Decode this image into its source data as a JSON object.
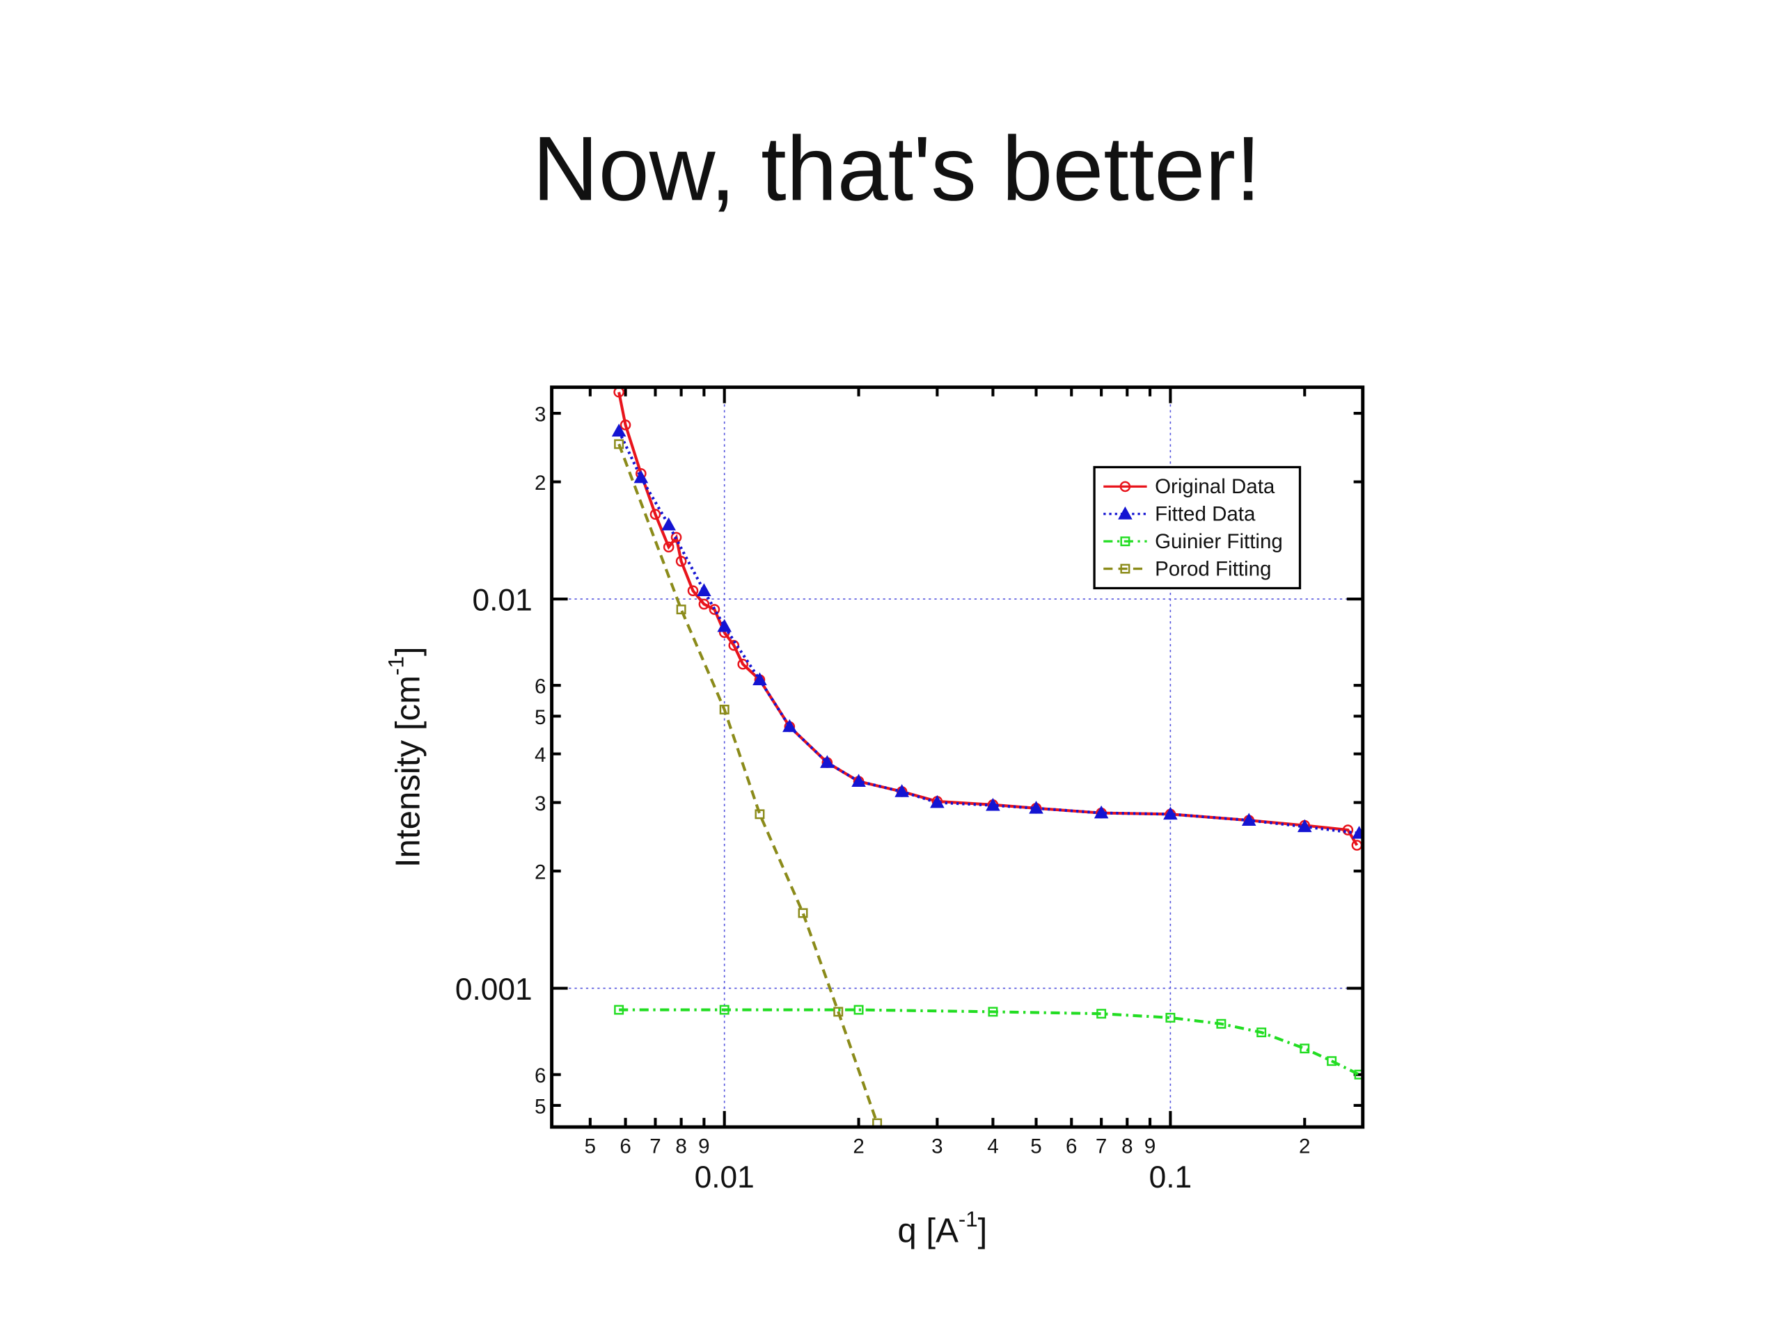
{
  "chart_data": {
    "type": "line",
    "title": "Now, that's better!",
    "x_label": [
      "q [A",
      "-1",
      "]"
    ],
    "y_label": [
      "Intensity [cm",
      "-1",
      "]"
    ],
    "xscale": "log",
    "yscale": "log",
    "xlim": [
      0.0041,
      0.27
    ],
    "ylim": [
      0.00044,
      0.035
    ],
    "xticks": [
      {
        "value": 0.005,
        "label": "5"
      },
      {
        "value": 0.006,
        "label": "6"
      },
      {
        "value": 0.007,
        "label": "7"
      },
      {
        "value": 0.008,
        "label": "8"
      },
      {
        "value": 0.009,
        "label": "9"
      },
      0.01,
      {
        "value": 0.02,
        "label": "2"
      },
      {
        "value": 0.03,
        "label": "3"
      },
      {
        "value": 0.04,
        "label": "4"
      },
      {
        "value": 0.05,
        "label": "5"
      },
      {
        "value": 0.06,
        "label": "6"
      },
      {
        "value": 0.07,
        "label": "7"
      },
      {
        "value": 0.08,
        "label": "8"
      },
      {
        "value": 0.09,
        "label": "9"
      },
      0.1,
      {
        "value": 0.2,
        "label": "2"
      }
    ],
    "yticks": [
      {
        "value": 0.0005,
        "label": "5"
      },
      {
        "value": 0.0006,
        "label": "6"
      },
      0.001,
      {
        "value": 0.002,
        "label": "2"
      },
      {
        "value": 0.003,
        "label": "3"
      },
      {
        "value": 0.004,
        "label": "4"
      },
      {
        "value": 0.005,
        "label": "5"
      },
      {
        "value": 0.006,
        "label": "6"
      },
      0.01,
      {
        "value": 0.02,
        "label": "2"
      },
      {
        "value": 0.03,
        "label": "3"
      }
    ],
    "grid": true,
    "legend": "upper right",
    "series": [
      {
        "name": "Original Data",
        "color": "#e8141c",
        "dash": "solid",
        "marker": "circle",
        "x": [
          0.0058,
          0.006,
          0.0065,
          0.007,
          0.0075,
          0.0078,
          0.008,
          0.0085,
          0.009,
          0.0095,
          0.01,
          0.0105,
          0.011,
          0.012,
          0.014,
          0.017,
          0.02,
          0.025,
          0.03,
          0.04,
          0.05,
          0.07,
          0.1,
          0.15,
          0.2,
          0.25,
          0.262
        ],
        "values": [
          0.034,
          0.028,
          0.021,
          0.0165,
          0.0136,
          0.0144,
          0.0125,
          0.0105,
          0.0097,
          0.0094,
          0.0082,
          0.0076,
          0.0068,
          0.0062,
          0.0047,
          0.0038,
          0.0034,
          0.0032,
          0.00302,
          0.00296,
          0.0029,
          0.00282,
          0.0028,
          0.0027,
          0.00262,
          0.00255,
          0.00233
        ]
      },
      {
        "name": "Fitted Data",
        "color": "#1414d2",
        "dash": "dotted",
        "marker": "triangle",
        "x": [
          0.0058,
          0.0065,
          0.0075,
          0.009,
          0.01,
          0.012,
          0.014,
          0.017,
          0.02,
          0.025,
          0.03,
          0.04,
          0.05,
          0.07,
          0.1,
          0.15,
          0.2,
          0.265
        ],
        "values": [
          0.027,
          0.0205,
          0.0155,
          0.0105,
          0.0085,
          0.0062,
          0.0047,
          0.0038,
          0.0034,
          0.0032,
          0.003,
          0.00295,
          0.0029,
          0.00282,
          0.0028,
          0.0027,
          0.0026,
          0.0025
        ]
      },
      {
        "name": "Guinier Fitting",
        "color": "#22dd22",
        "dash": "dashdot",
        "marker": "square",
        "x": [
          0.0058,
          0.01,
          0.02,
          0.04,
          0.07,
          0.1,
          0.13,
          0.16,
          0.2,
          0.23,
          0.265
        ],
        "values": [
          0.00088,
          0.00088,
          0.00088,
          0.00087,
          0.00086,
          0.00084,
          0.00081,
          0.00077,
          0.0007,
          0.00065,
          0.0006
        ]
      },
      {
        "name": "Porod Fitting",
        "color": "#8b8b1a",
        "dash": "dashed",
        "marker": "square",
        "x": [
          0.0058,
          0.008,
          0.01,
          0.012,
          0.015,
          0.018,
          0.022
        ],
        "values": [
          0.025,
          0.0094,
          0.0052,
          0.0028,
          0.00156,
          0.00087,
          0.00045
        ]
      }
    ]
  }
}
